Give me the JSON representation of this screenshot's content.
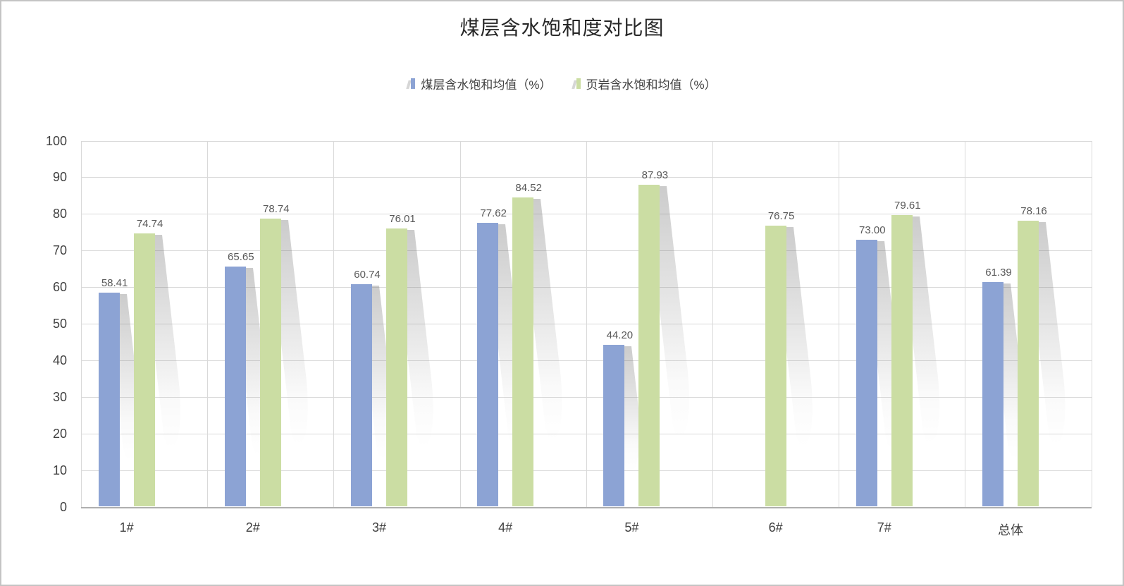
{
  "title": "煤层含水饱和度对比图",
  "legend": {
    "items": [
      {
        "label": "煤层含水饱和均值（%）",
        "color": "#8CA3D4"
      },
      {
        "label": "页岩含水饱和均值（%）",
        "color": "#CBDDA3"
      }
    ]
  },
  "colors": {
    "series1": "#8CA3D4",
    "series2": "#CBDDA3",
    "grid": "#D9D9D9",
    "axis_line": "#AFAFAF",
    "axis_text": "#404040",
    "value_label_text": "#595959",
    "frame_border": "#C4C4C4"
  },
  "chart_data": {
    "type": "bar",
    "title": "煤层含水饱和度对比图",
    "categories": [
      "1#",
      "2#",
      "3#",
      "4#",
      "5#",
      "6#",
      "7#",
      "总体"
    ],
    "series": [
      {
        "name": "煤层含水饱和均值（%）",
        "color": "#8CA3D4",
        "values": [
          58.41,
          65.65,
          60.74,
          77.62,
          44.2,
          null,
          73.0,
          61.39
        ]
      },
      {
        "name": "页岩含水饱和均值（%）",
        "color": "#CBDDA3",
        "values": [
          74.74,
          78.74,
          76.01,
          84.52,
          87.93,
          76.75,
          79.61,
          78.16
        ]
      }
    ],
    "ylim": [
      0,
      100
    ],
    "ytick_step": 10,
    "yticks": [
      0,
      10,
      20,
      30,
      40,
      50,
      60,
      70,
      80,
      90,
      100
    ],
    "grid": true,
    "legend_position": "top",
    "value_labels": true,
    "value_label_decimals": 2
  }
}
